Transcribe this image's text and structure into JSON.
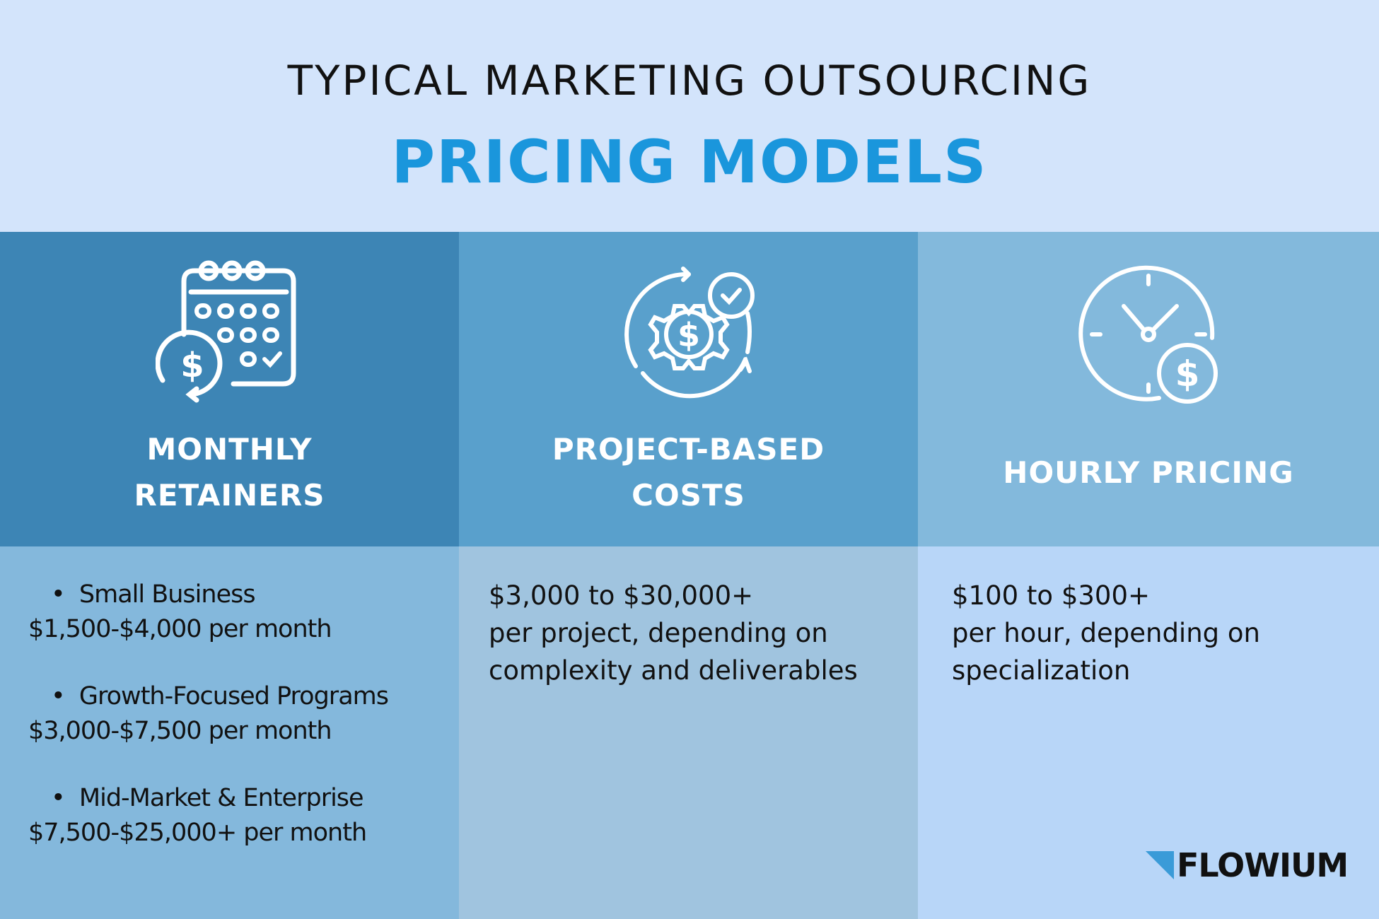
{
  "header": {
    "supertitle": "TYPICAL MARKETING OUTSOURCING",
    "title": "PRICING MODELS"
  },
  "columns": [
    {
      "icon": "calendar-dollar-icon",
      "heading_lines": [
        "MONTHLY",
        "RETAINERS"
      ],
      "tiers": [
        {
          "name": "Small Business",
          "price": "$1,500-$4,000 per month"
        },
        {
          "name": "Growth-Focused Programs",
          "price": "$3,000-$7,500 per month"
        },
        {
          "name": "Mid-Market & Enterprise",
          "price": "$7,500-$25,000+ per month"
        }
      ]
    },
    {
      "icon": "gear-dollar-cycle-icon",
      "heading_lines": [
        "PROJECT-BASED",
        "COSTS"
      ],
      "lines": [
        "$3,000 to $30,000+",
        "per project, depending on",
        "complexity and deliverables"
      ]
    },
    {
      "icon": "clock-dollar-icon",
      "heading_lines": [
        "HOURLY PRICING"
      ],
      "lines": [
        "$100 to $300+",
        "per hour, depending on",
        "specialization"
      ]
    }
  ],
  "brand": {
    "name": "FLOWIUM",
    "accent": "#3a9bd8"
  },
  "colors": {
    "header_bg": "#d3e4fb",
    "title": "#1a96dc",
    "col1_top": "#3d85b5",
    "col2_top": "#59a0cc",
    "col3_top": "#83b9dc",
    "col1_bottom": "#84b8dc",
    "col2_bottom": "#a0c4df",
    "col3_bottom": "#b8d6f8"
  }
}
